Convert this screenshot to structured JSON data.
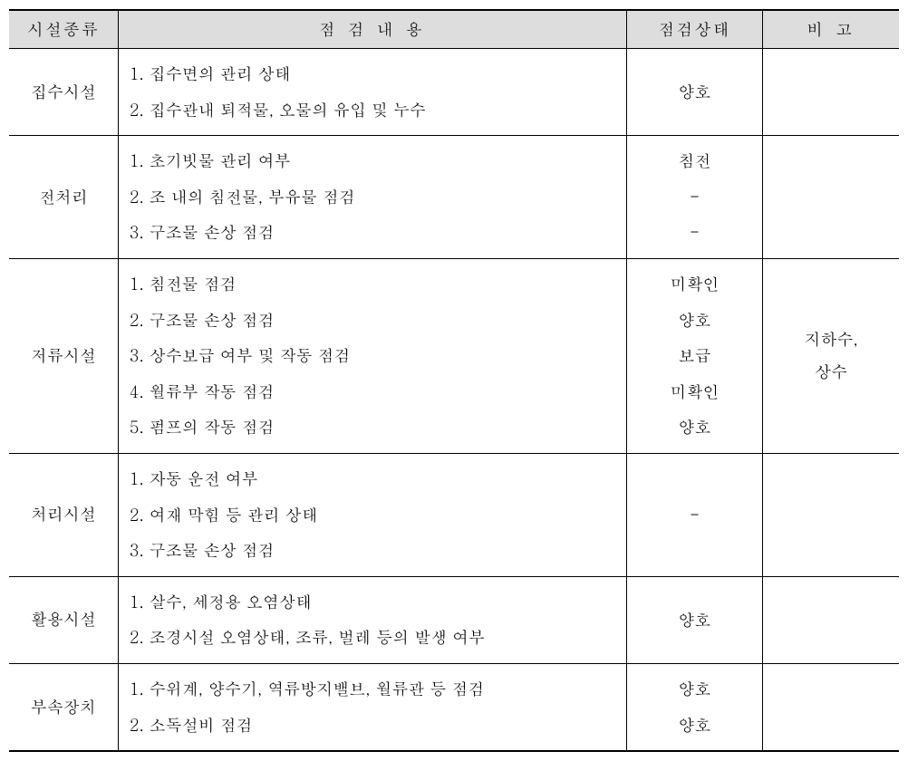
{
  "headers": {
    "col1": "시설종류",
    "col2": "점 검 내 용",
    "col3": "점검상태",
    "col4": "비 고"
  },
  "rows": [
    {
      "facility": "집수시설",
      "items": [
        "1. 집수면의 관리 상태",
        "2. 집수관내 퇴적물, 오물의 유입 및 누수"
      ],
      "status": [
        "양호"
      ],
      "note": ""
    },
    {
      "facility": "전처리",
      "items": [
        "1. 초기빗물 관리 여부",
        "2. 조 내의 침전물, 부유물 점검",
        "3. 구조물 손상 점검"
      ],
      "status": [
        "침전",
        "-",
        "-"
      ],
      "note": ""
    },
    {
      "facility": "저류시설",
      "items": [
        "1. 침전물 점검",
        "2. 구조물 손상 점검",
        "3. 상수보급 여부 및 작동 점검",
        "4. 월류부 작동 점검",
        "5. 펌프의 작동 점검"
      ],
      "status": [
        "미확인",
        "양호",
        "보급",
        "미확인",
        "양호"
      ],
      "note": "지하수, 상수"
    },
    {
      "facility": "처리시설",
      "items": [
        "1. 자동 운전 여부",
        "2. 여재 막힘 등 관리 상태",
        "3. 구조물 손상 점검"
      ],
      "status": [
        "-"
      ],
      "note": ""
    },
    {
      "facility": "활용시설",
      "items": [
        "1. 살수, 세정용 오염상태",
        "2. 조경시설 오염상태, 조류, 벌레 등의 발생 여부"
      ],
      "status": [
        "양호"
      ],
      "note": ""
    },
    {
      "facility": "부속장치",
      "items": [
        "1. 수위계, 양수기, 역류방지밸브, 월류관 등 점검",
        "2. 소독설비 점검"
      ],
      "status": [
        "양호",
        "양호"
      ],
      "note": ""
    }
  ],
  "columnWidths": {
    "col1": "120px",
    "col2": "560px",
    "col3": "150px",
    "col4": "150px"
  }
}
